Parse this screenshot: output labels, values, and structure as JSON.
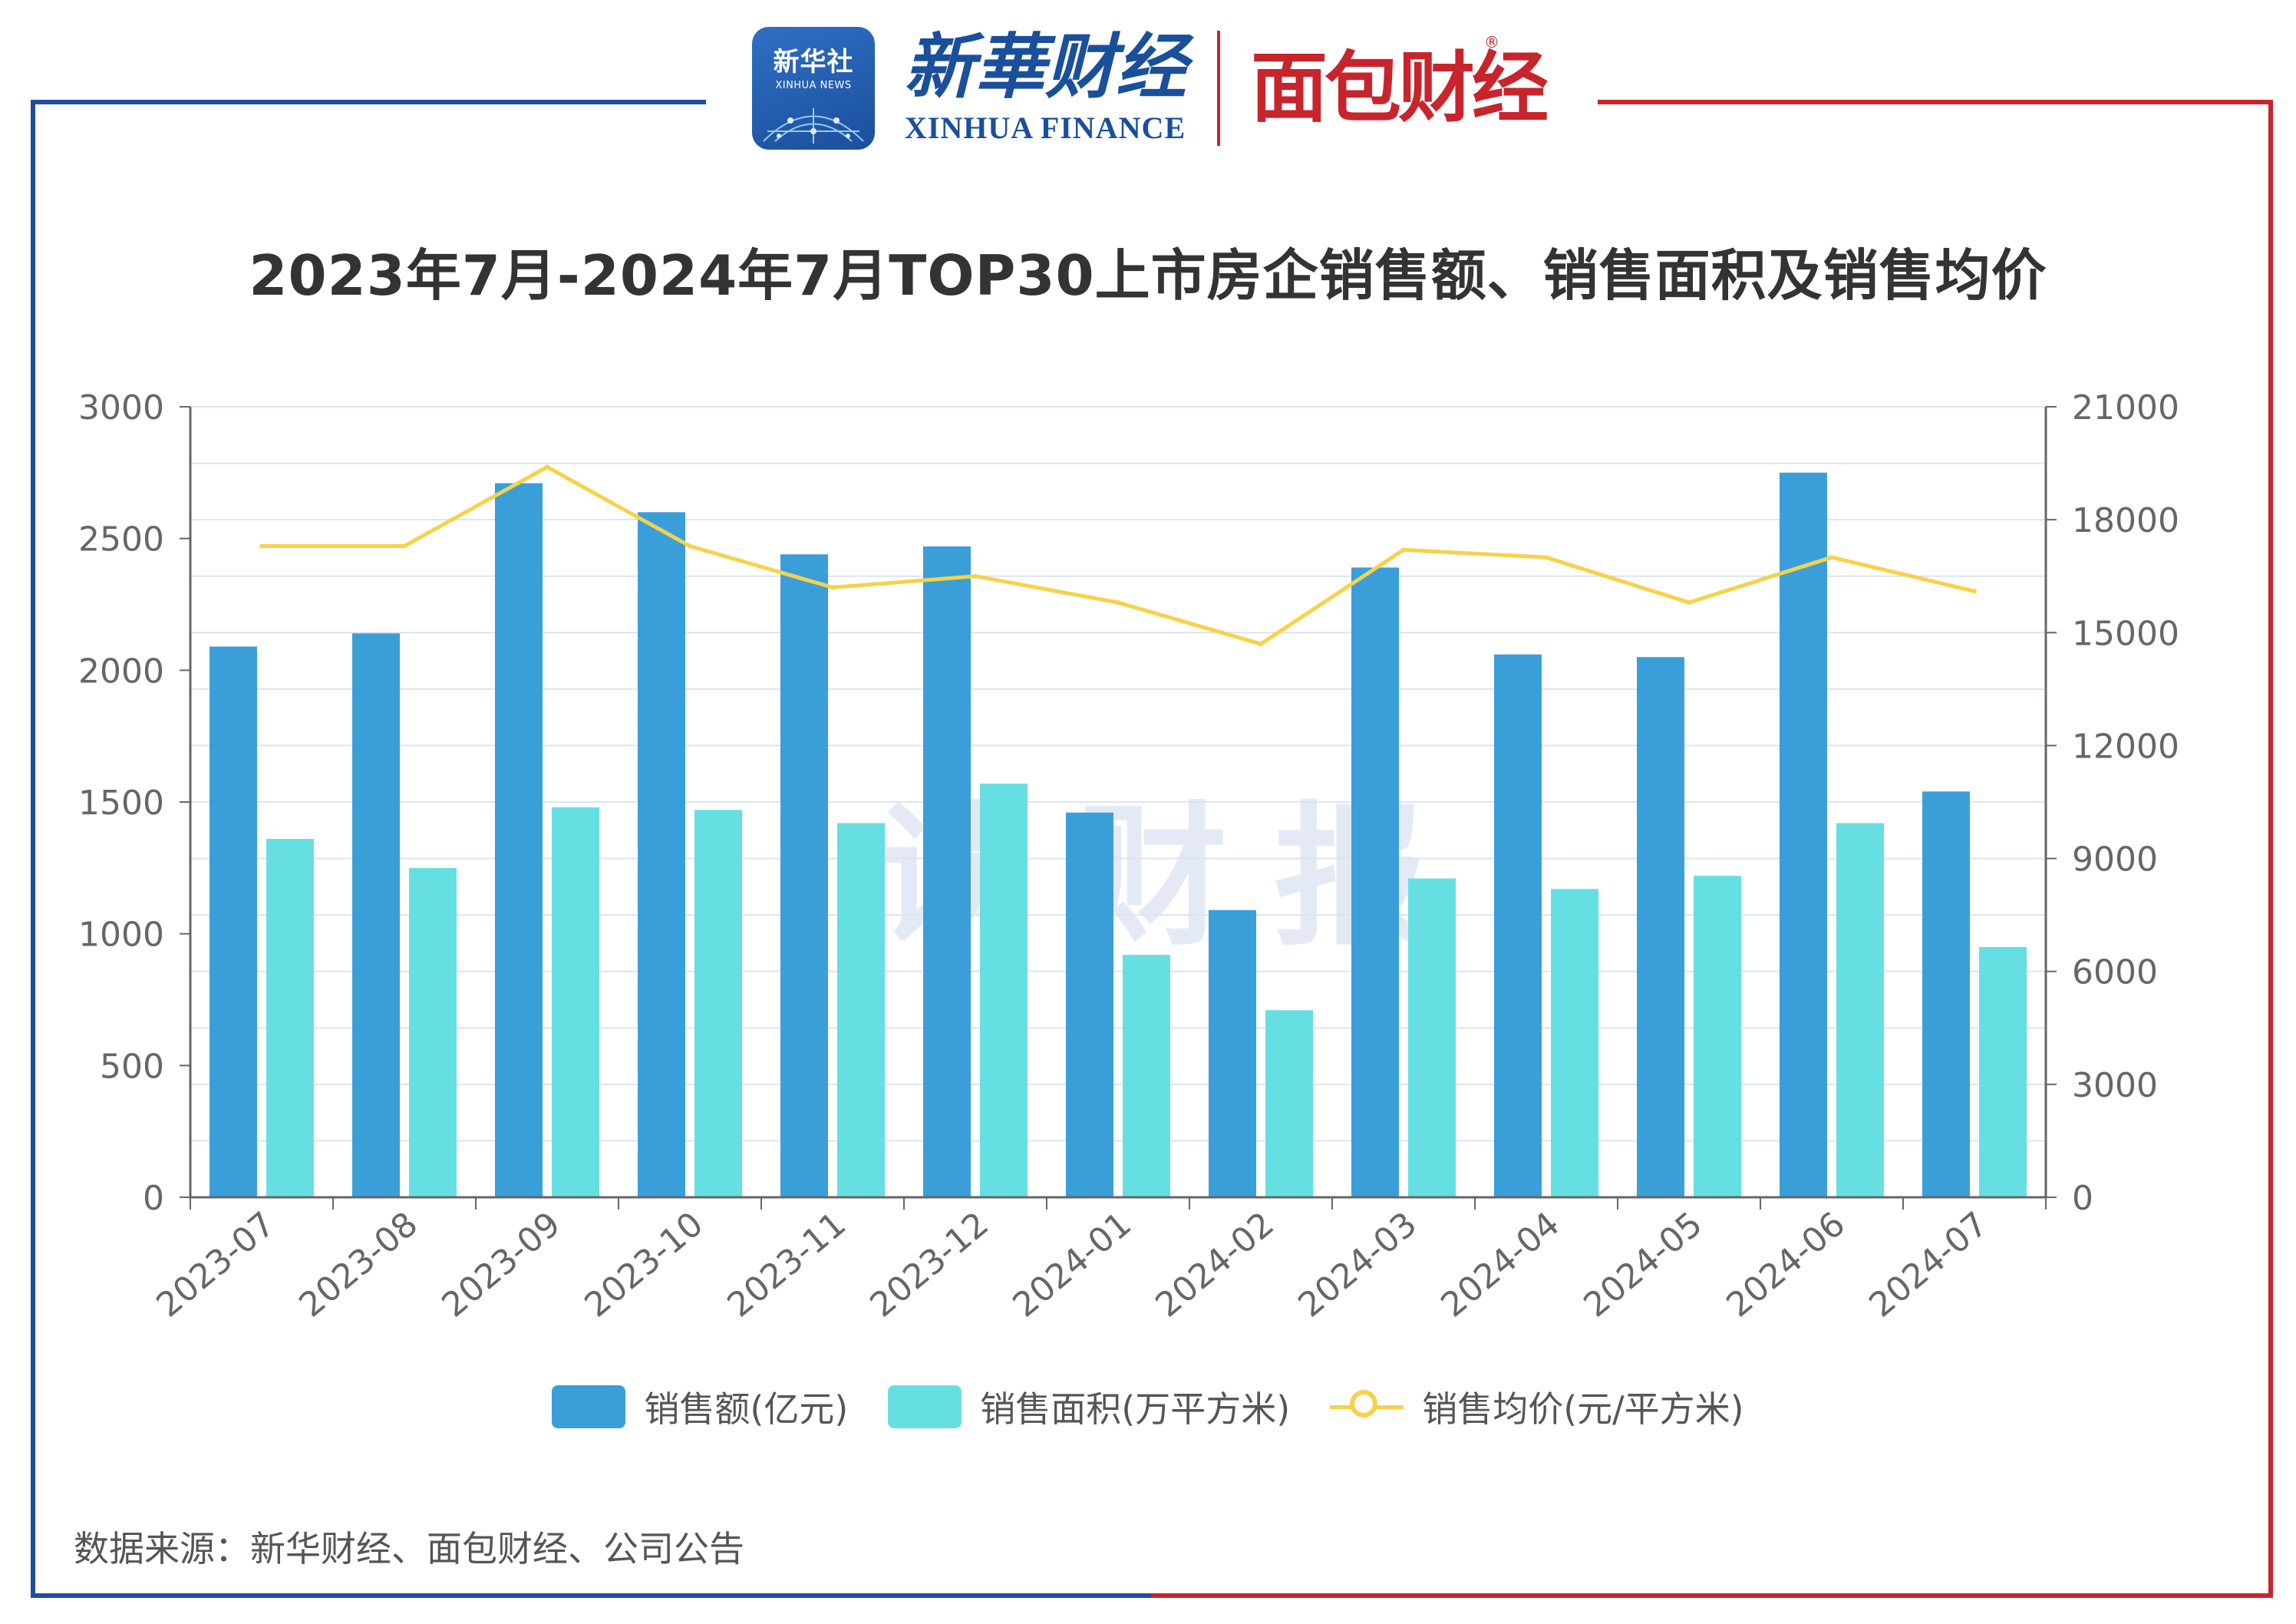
{
  "header": {
    "xinhua_badge_cn": "新华社",
    "xinhua_badge_en": "XINHUA NEWS",
    "xinhua_finance_cn": "新華财经",
    "xinhua_finance_en": "XINHUA FINANCE",
    "mianbao_cn": "面包财经",
    "registered_mark": "®"
  },
  "watermark": "读财报",
  "source": "数据来源：新华财经、面包财经、公司公告",
  "colors": {
    "frame_left": "#1f4e9c",
    "frame_right": "#c8242c",
    "sales_amount": "#3a9fd8",
    "sales_area": "#66dfe2",
    "avg_price": "#f6d24a",
    "grid": "#dde3ee",
    "axis": "#666666"
  },
  "chart_data": {
    "type": "bar",
    "title": "2023年7月-2024年7月TOP30上市房企销售额、销售面积及销售均价",
    "categories": [
      "2023-07",
      "2023-08",
      "2023-09",
      "2023-10",
      "2023-11",
      "2023-12",
      "2024-01",
      "2024-02",
      "2024-03",
      "2024-04",
      "2024-05",
      "2024-06",
      "2024-07"
    ],
    "series": [
      {
        "name": "销售额(亿元)",
        "type": "bar",
        "axis": "left",
        "values": [
          2090,
          2140,
          2710,
          2600,
          2440,
          2470,
          1460,
          1090,
          2390,
          2060,
          2050,
          2750,
          1540
        ]
      },
      {
        "name": "销售面积(万平方米)",
        "type": "bar",
        "axis": "left",
        "values": [
          1360,
          1250,
          1480,
          1470,
          1420,
          1570,
          920,
          710,
          1210,
          1170,
          1220,
          1420,
          950
        ]
      },
      {
        "name": "销售均价(元/平方米)",
        "type": "line",
        "axis": "right",
        "values": [
          17300,
          17300,
          19400,
          17300,
          16200,
          16500,
          15800,
          14700,
          17200,
          17000,
          15800,
          17000,
          16100
        ]
      }
    ],
    "y_left": {
      "min": 0,
      "max": 3000,
      "ticks": [
        0,
        500,
        1000,
        1500,
        2000,
        2500,
        3000
      ]
    },
    "y_right": {
      "min": 0,
      "max": 21000,
      "ticks": [
        0,
        3000,
        6000,
        9000,
        12000,
        15000,
        18000,
        21000
      ]
    },
    "grid": true,
    "legend_position": "bottom"
  }
}
